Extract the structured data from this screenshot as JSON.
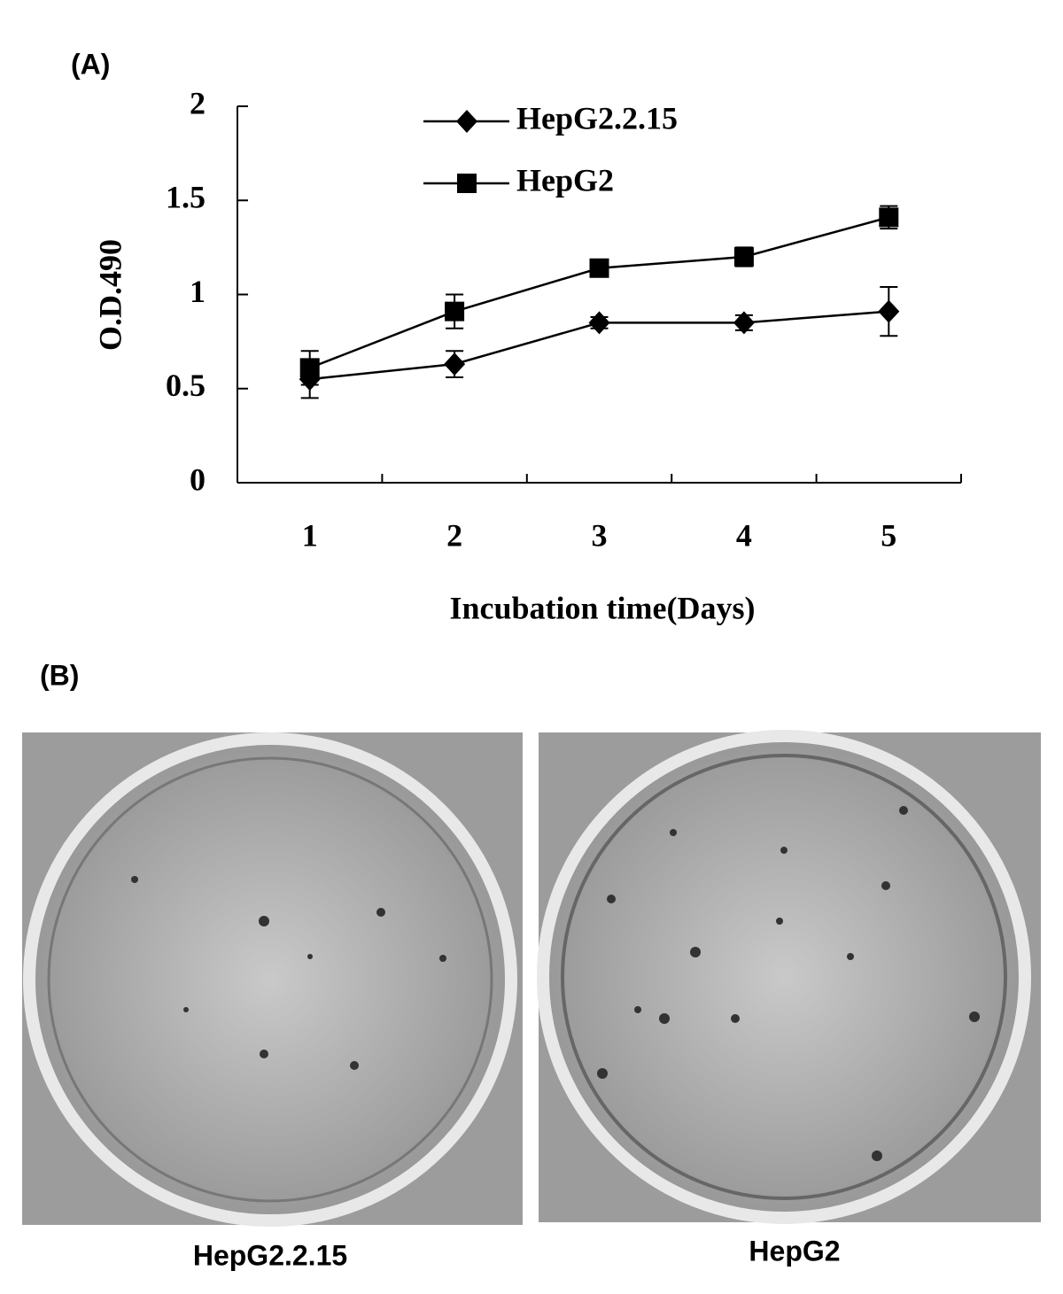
{
  "panels": {
    "a": "(A)",
    "b": "(B)"
  },
  "chart_data": {
    "type": "line",
    "xlabel": "Incubation time(Days)",
    "ylabel": "O.D.490",
    "categories": [
      "1",
      "2",
      "3",
      "4",
      "5"
    ],
    "series": [
      {
        "name": "HepG2.2.15",
        "color": "#000000",
        "marker": "diamond",
        "values": [
          0.55,
          0.63,
          0.85,
          0.85,
          0.91
        ],
        "errors": [
          0.1,
          0.07,
          0.03,
          0.04,
          0.13
        ]
      },
      {
        "name": "HepG2",
        "color": "#000000",
        "marker": "square",
        "values": [
          0.61,
          0.91,
          1.14,
          1.2,
          1.41
        ],
        "errors": [
          0.09,
          0.09,
          0.04,
          0.05,
          0.06
        ]
      }
    ],
    "ylim": [
      0,
      2
    ],
    "yticks": [
      0,
      0.5,
      1,
      1.5,
      2
    ],
    "grid": false,
    "legend": "top"
  },
  "photos": [
    {
      "caption": "HepG2.2.15"
    },
    {
      "caption": "HepG2"
    }
  ]
}
